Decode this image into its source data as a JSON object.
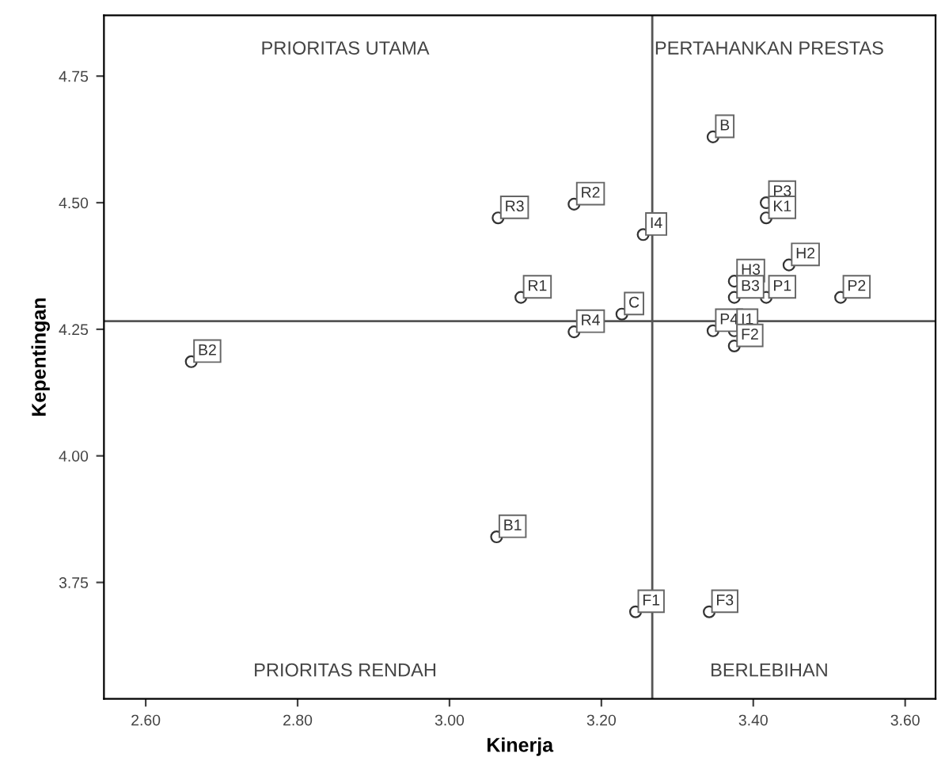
{
  "chart_data": {
    "type": "scatter",
    "xlabel": "Kinerja",
    "ylabel": "Kepentingan",
    "x": [
      3.347,
      3.417,
      3.417,
      3.164,
      3.064,
      3.255,
      3.447,
      3.375,
      3.375,
      3.417,
      3.515,
      3.094,
      3.227,
      3.164,
      3.347,
      3.375,
      3.375,
      2.66,
      3.062,
      3.245,
      3.342
    ],
    "values": [
      4.63,
      4.5,
      4.47,
      4.497,
      4.47,
      4.437,
      4.377,
      4.345,
      4.313,
      4.313,
      4.313,
      4.313,
      4.28,
      4.245,
      4.247,
      4.247,
      4.217,
      4.186,
      3.84,
      3.692,
      3.692
    ],
    "value_labels": [
      "B",
      "P3",
      "K1",
      "R2",
      "R3",
      "I4",
      "H2",
      "H3",
      "B3",
      "P1",
      "P2",
      "R1",
      "C",
      "R4",
      "P4",
      "I1",
      "F2",
      "B2",
      "B1",
      "F1",
      "F3"
    ],
    "color": "#333333",
    "marker": "circle",
    "grid": false,
    "legend": false,
    "xlim": [
      2.545,
      3.64
    ],
    "ylim": [
      3.52,
      4.87
    ],
    "xticks": [
      {
        "value": 2.6,
        "label": "2.60"
      },
      {
        "value": 2.8,
        "label": "2.80"
      },
      {
        "value": 3.0,
        "label": "3.00"
      },
      {
        "value": 3.2,
        "label": "3.20"
      },
      {
        "value": 3.4,
        "label": "3.40"
      },
      {
        "value": 3.6,
        "label": "3.60"
      }
    ],
    "yticks": [
      {
        "value": 3.75,
        "label": "3.75"
      },
      {
        "value": 4.0,
        "label": "4.00"
      },
      {
        "value": 4.25,
        "label": "4.25"
      },
      {
        "value": 4.5,
        "label": "4.50"
      },
      {
        "value": 4.75,
        "label": "4.75"
      }
    ],
    "ref_lines": [
      {
        "axis": "x",
        "value": 3.267,
        "label": null,
        "color": "#555555"
      },
      {
        "axis": "y",
        "value": 4.266,
        "label": null,
        "color": "#555555"
      }
    ],
    "annotations": [
      "PRIORITAS UTAMA",
      "PERTAHANKAN PRESTAS",
      "PRIORITAS RENDAH",
      "BERLEBIHAN"
    ]
  }
}
